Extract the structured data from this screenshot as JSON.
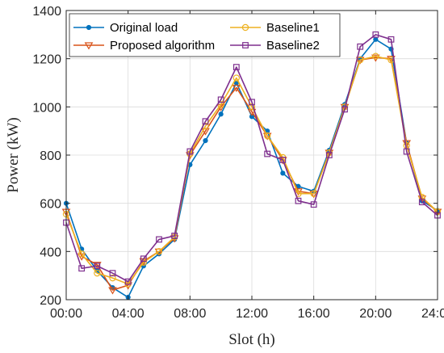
{
  "chart_data": {
    "type": "line",
    "xlabel": "Slot (h)",
    "ylabel": "Power (kW)",
    "xlim": [
      0,
      24
    ],
    "ylim": [
      200,
      1400
    ],
    "grid": true,
    "legend_position": "top",
    "x_ticks": [
      {
        "value": 0,
        "label": "00:00"
      },
      {
        "value": 4,
        "label": "04:00"
      },
      {
        "value": 8,
        "label": "08:00"
      },
      {
        "value": 12,
        "label": "12:00"
      },
      {
        "value": 16,
        "label": "16:00"
      },
      {
        "value": 20,
        "label": "20:00"
      },
      {
        "value": 24,
        "label": "24:00"
      }
    ],
    "y_ticks": [
      {
        "value": 200,
        "label": "200"
      },
      {
        "value": 400,
        "label": "400"
      },
      {
        "value": 600,
        "label": "600"
      },
      {
        "value": 800,
        "label": "800"
      },
      {
        "value": 1000,
        "label": "1000"
      },
      {
        "value": 1200,
        "label": "1200"
      },
      {
        "value": 1400,
        "label": "1400"
      }
    ],
    "x": [
      0,
      1,
      2,
      3,
      4,
      5,
      6,
      7,
      8,
      9,
      10,
      11,
      12,
      13,
      14,
      15,
      16,
      17,
      18,
      19,
      20,
      21,
      22,
      23,
      24
    ],
    "series": [
      {
        "name": "Original load",
        "color": "#0072BD",
        "marker": "dot",
        "values": [
          600,
          410,
          320,
          250,
          210,
          340,
          390,
          450,
          760,
          860,
          970,
          1100,
          960,
          900,
          725,
          670,
          650,
          820,
          1010,
          1200,
          1280,
          1240,
          850,
          610,
          570
        ]
      },
      {
        "name": "Proposed algorithm",
        "color": "#D95319",
        "marker": "triangle-down",
        "values": [
          565,
          380,
          345,
          240,
          260,
          360,
          400,
          455,
          800,
          900,
          1000,
          1080,
          980,
          880,
          780,
          650,
          640,
          810,
          1000,
          1195,
          1205,
          1200,
          850,
          620,
          565
        ]
      },
      {
        "name": "Baseline1",
        "color": "#EDB120",
        "marker": "circle",
        "values": [
          555,
          390,
          310,
          290,
          265,
          355,
          400,
          460,
          805,
          920,
          1010,
          1120,
          1000,
          880,
          790,
          640,
          640,
          810,
          1000,
          1195,
          1210,
          1195,
          840,
          625,
          565
        ]
      },
      {
        "name": "Baseline2",
        "color": "#7E2F8E",
        "marker": "square",
        "values": [
          520,
          330,
          340,
          310,
          275,
          370,
          450,
          465,
          815,
          940,
          1030,
          1165,
          1020,
          805,
          780,
          610,
          595,
          800,
          990,
          1250,
          1300,
          1280,
          815,
          605,
          550
        ]
      }
    ]
  }
}
